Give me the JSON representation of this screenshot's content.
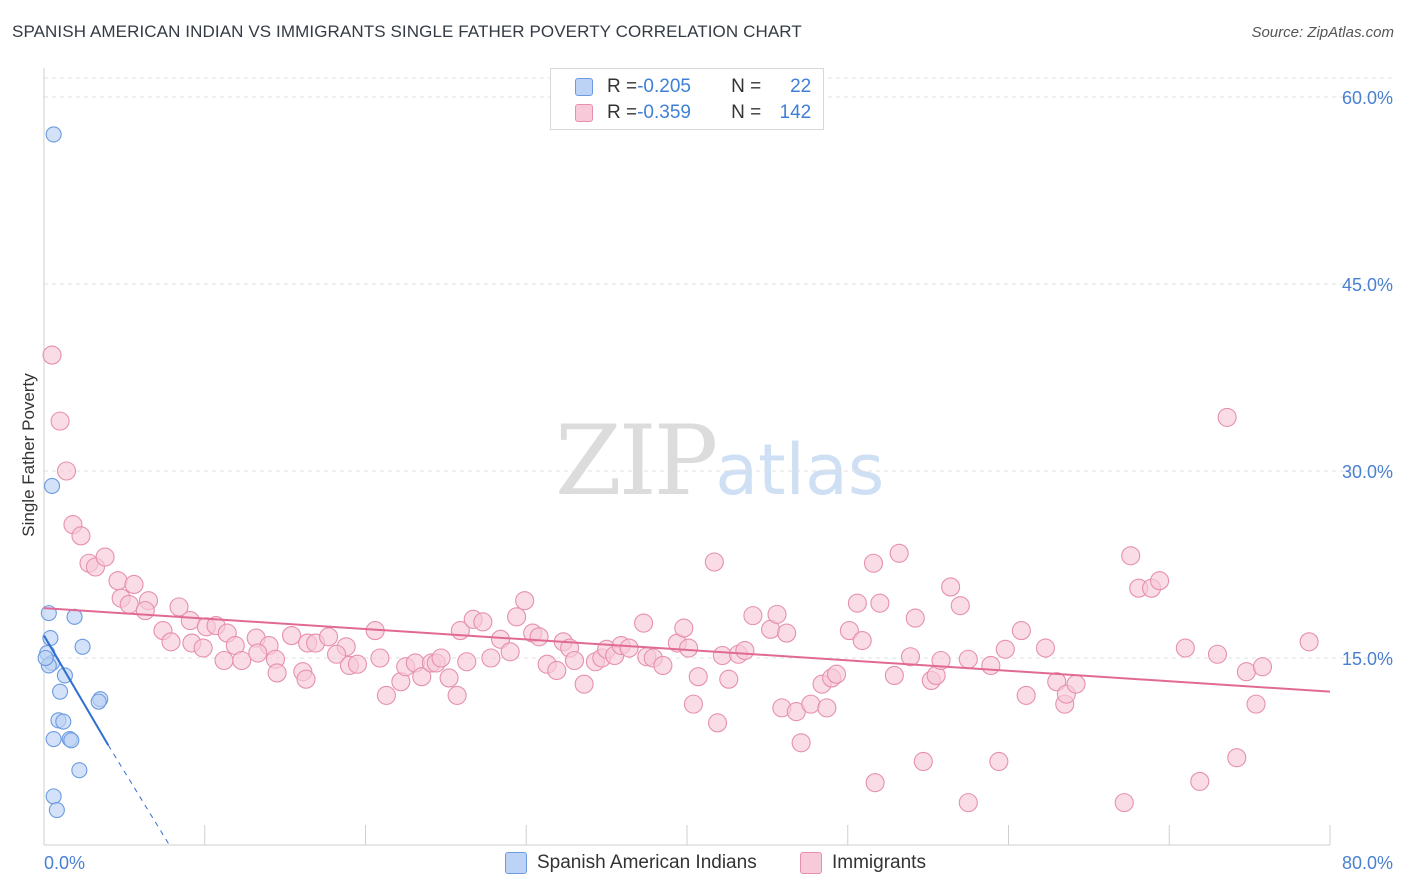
{
  "title": "SPANISH AMERICAN INDIAN VS IMMIGRANTS SINGLE FATHER POVERTY CORRELATION CHART",
  "source": "Source: ZipAtlas.com",
  "watermark": {
    "zip": "ZIP",
    "atlas": "atlas"
  },
  "legend_top": {
    "rows": [
      {
        "r_label": "R = ",
        "r_value": "-0.205",
        "n_label": "N = ",
        "n_value": "22",
        "color": "#6b9ae0"
      },
      {
        "r_label": "R = ",
        "r_value": "-0.359",
        "n_label": "N = ",
        "n_value": "142",
        "color": "#e690ad"
      }
    ]
  },
  "legend_bottom": {
    "items": [
      {
        "label": "Spanish American Indians",
        "color": "#bcd3f5"
      },
      {
        "label": "Immigrants",
        "color": "#f8c9d8"
      }
    ]
  },
  "chart_data": {
    "type": "scatter",
    "title": "SPANISH AMERICAN INDIAN VS IMMIGRANTS SINGLE FATHER POVERTY CORRELATION CHART",
    "xlabel": "",
    "ylabel": "Single Father Poverty",
    "xlim": [
      0,
      80
    ],
    "ylim": [
      0,
      60
    ],
    "x_tick_labels": [
      "0.0%",
      "80.0%"
    ],
    "y_ticks": [
      15,
      30,
      45,
      60
    ],
    "y_tick_labels": [
      "15.0%",
      "30.0%",
      "45.0%",
      "60.0%"
    ],
    "grid": true,
    "legend_placement": "top-center",
    "series": [
      {
        "name": "Spanish American Indians",
        "color": "#6b9ae0",
        "fill": "#bcd3f5",
        "r": -0.205,
        "n": 22,
        "points": [
          [
            0.6,
            57.0
          ],
          [
            0.5,
            28.8
          ],
          [
            0.3,
            18.6
          ],
          [
            1.9,
            18.3
          ],
          [
            0.4,
            16.6
          ],
          [
            0.2,
            15.4
          ],
          [
            2.4,
            15.9
          ],
          [
            0.5,
            14.6
          ],
          [
            0.3,
            14.4
          ],
          [
            1.3,
            13.6
          ],
          [
            1.0,
            12.3
          ],
          [
            3.5,
            11.7
          ],
          [
            3.4,
            11.5
          ],
          [
            0.9,
            10.0
          ],
          [
            1.2,
            9.9
          ],
          [
            0.6,
            8.5
          ],
          [
            1.6,
            8.5
          ],
          [
            1.7,
            8.4
          ],
          [
            2.2,
            6.0
          ],
          [
            0.6,
            3.9
          ],
          [
            0.8,
            2.8
          ],
          [
            0.1,
            15.0
          ]
        ],
        "trend": {
          "x0": 0.0,
          "y0": 16.8,
          "x1": 4.0,
          "y1": 8.0,
          "dashed_to_x": 7.8,
          "dashed_to_y": 0.0
        }
      },
      {
        "name": "Immigrants",
        "color": "#e690ad",
        "fill": "#f8c9d8",
        "r": -0.359,
        "n": 142,
        "points": [
          [
            0.5,
            39.3
          ],
          [
            1.0,
            34.0
          ],
          [
            1.4,
            30.0
          ],
          [
            1.8,
            25.7
          ],
          [
            2.3,
            24.8
          ],
          [
            2.8,
            22.6
          ],
          [
            3.2,
            22.3
          ],
          [
            3.8,
            23.1
          ],
          [
            4.6,
            21.2
          ],
          [
            5.6,
            20.9
          ],
          [
            4.8,
            19.8
          ],
          [
            5.3,
            19.3
          ],
          [
            6.5,
            19.6
          ],
          [
            6.3,
            18.8
          ],
          [
            8.4,
            19.1
          ],
          [
            9.1,
            18.0
          ],
          [
            7.4,
            17.2
          ],
          [
            10.1,
            17.5
          ],
          [
            10.7,
            17.6
          ],
          [
            11.4,
            17.0
          ],
          [
            7.9,
            16.3
          ],
          [
            9.2,
            16.2
          ],
          [
            11.9,
            16.0
          ],
          [
            13.2,
            16.6
          ],
          [
            14.0,
            16.0
          ],
          [
            15.4,
            16.8
          ],
          [
            16.4,
            16.2
          ],
          [
            16.9,
            16.2
          ],
          [
            17.7,
            16.7
          ],
          [
            18.8,
            15.9
          ],
          [
            20.6,
            17.2
          ],
          [
            9.9,
            15.8
          ],
          [
            11.2,
            14.8
          ],
          [
            12.3,
            14.8
          ],
          [
            13.3,
            15.4
          ],
          [
            14.4,
            14.9
          ],
          [
            14.5,
            13.8
          ],
          [
            16.1,
            13.9
          ],
          [
            16.3,
            13.3
          ],
          [
            18.2,
            15.3
          ],
          [
            19.0,
            14.4
          ],
          [
            19.5,
            14.5
          ],
          [
            20.9,
            15.0
          ],
          [
            21.3,
            12.0
          ],
          [
            22.2,
            13.1
          ],
          [
            22.5,
            14.3
          ],
          [
            23.1,
            14.6
          ],
          [
            23.5,
            13.5
          ],
          [
            24.1,
            14.6
          ],
          [
            24.4,
            14.6
          ],
          [
            24.7,
            15.0
          ],
          [
            25.2,
            13.4
          ],
          [
            25.7,
            12.0
          ],
          [
            25.9,
            17.2
          ],
          [
            26.3,
            14.7
          ],
          [
            26.7,
            18.1
          ],
          [
            27.3,
            17.9
          ],
          [
            27.8,
            15.0
          ],
          [
            28.4,
            16.5
          ],
          [
            29.0,
            15.5
          ],
          [
            29.4,
            18.3
          ],
          [
            29.9,
            19.6
          ],
          [
            30.4,
            17.0
          ],
          [
            30.8,
            16.7
          ],
          [
            31.3,
            14.5
          ],
          [
            31.9,
            14.0
          ],
          [
            32.3,
            16.3
          ],
          [
            32.7,
            15.8
          ],
          [
            33.0,
            14.8
          ],
          [
            33.6,
            12.9
          ],
          [
            34.3,
            14.7
          ],
          [
            34.7,
            15.0
          ],
          [
            35.0,
            15.7
          ],
          [
            35.5,
            15.2
          ],
          [
            35.9,
            16.0
          ],
          [
            36.4,
            15.8
          ],
          [
            37.3,
            17.8
          ],
          [
            37.5,
            15.1
          ],
          [
            37.9,
            15.0
          ],
          [
            38.5,
            14.4
          ],
          [
            39.4,
            16.2
          ],
          [
            39.8,
            17.4
          ],
          [
            40.1,
            15.8
          ],
          [
            40.4,
            11.3
          ],
          [
            40.7,
            13.5
          ],
          [
            41.7,
            22.7
          ],
          [
            41.9,
            9.8
          ],
          [
            42.2,
            15.2
          ],
          [
            42.6,
            13.3
          ],
          [
            43.2,
            15.3
          ],
          [
            43.6,
            15.6
          ],
          [
            44.1,
            18.4
          ],
          [
            45.2,
            17.3
          ],
          [
            45.6,
            18.5
          ],
          [
            45.9,
            11.0
          ],
          [
            46.2,
            17.0
          ],
          [
            46.8,
            10.7
          ],
          [
            47.1,
            8.2
          ],
          [
            47.7,
            11.3
          ],
          [
            48.4,
            12.9
          ],
          [
            48.7,
            11.0
          ],
          [
            49.0,
            13.4
          ],
          [
            49.3,
            13.7
          ],
          [
            50.1,
            17.2
          ],
          [
            50.6,
            19.4
          ],
          [
            50.9,
            16.4
          ],
          [
            51.6,
            22.6
          ],
          [
            52.0,
            19.4
          ],
          [
            52.9,
            13.6
          ],
          [
            53.2,
            23.4
          ],
          [
            53.9,
            15.1
          ],
          [
            54.2,
            18.2
          ],
          [
            54.7,
            6.7
          ],
          [
            55.2,
            13.2
          ],
          [
            55.5,
            13.6
          ],
          [
            55.8,
            14.8
          ],
          [
            56.4,
            20.7
          ],
          [
            57.0,
            19.2
          ],
          [
            57.5,
            14.9
          ],
          [
            57.5,
            3.4
          ],
          [
            58.9,
            14.4
          ],
          [
            59.4,
            6.7
          ],
          [
            59.8,
            15.7
          ],
          [
            60.8,
            17.2
          ],
          [
            61.1,
            12.0
          ],
          [
            62.3,
            15.8
          ],
          [
            63.0,
            13.1
          ],
          [
            63.5,
            11.3
          ],
          [
            63.6,
            12.1
          ],
          [
            64.2,
            12.9
          ],
          [
            51.7,
            5.0
          ],
          [
            67.2,
            3.4
          ],
          [
            67.6,
            23.2
          ],
          [
            68.1,
            20.6
          ],
          [
            68.9,
            20.6
          ],
          [
            69.4,
            21.2
          ],
          [
            71.0,
            15.8
          ],
          [
            71.9,
            5.1
          ],
          [
            73.0,
            15.3
          ],
          [
            73.6,
            34.3
          ],
          [
            74.2,
            7.0
          ],
          [
            74.8,
            13.9
          ],
          [
            75.4,
            11.3
          ],
          [
            75.8,
            14.3
          ],
          [
            78.7,
            16.3
          ]
        ],
        "trend": {
          "x0": 0.0,
          "y0": 19.0,
          "x1": 80.0,
          "y1": 12.3
        }
      }
    ]
  }
}
